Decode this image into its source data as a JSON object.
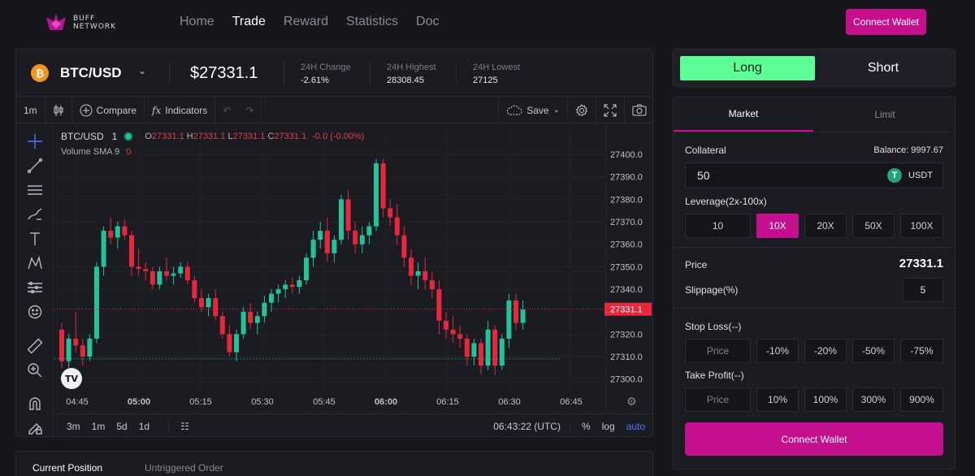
{
  "header": {
    "logo_line1": "BUFF",
    "logo_line2": "NETWORK",
    "nav": [
      "Home",
      "Trade",
      "Reward",
      "Statistics",
      "Doc"
    ],
    "active_nav": "Trade",
    "connect_label": "Connect Wallet"
  },
  "ticker": {
    "pair": "BTC/USD",
    "coin_icon": "bitcoin-icon",
    "price": "$27331.1",
    "stats": [
      {
        "label": "24H Change",
        "value": "-2.61%"
      },
      {
        "label": "24H Highest",
        "value": "28308.45"
      },
      {
        "label": "24H Lowest",
        "value": "27125"
      }
    ]
  },
  "toolbar": {
    "interval": "1m",
    "compare": "Compare",
    "indicators": "Indicators",
    "save": "Save"
  },
  "legend": {
    "symbol": "BTC/USD",
    "interval": "1",
    "o_label": "O",
    "o_val": "27331.1",
    "h_label": "H",
    "h_val": "27331.1",
    "l_label": "L",
    "l_val": "27331.1",
    "c_label": "C",
    "c_val": "27331.1",
    "change": "-0.0 (-0.00%)",
    "volume": "Volume SMA 9",
    "volume_val": "0"
  },
  "chart_data": {
    "type": "candlestick",
    "y_ticks": [
      "27400.0",
      "27390.0",
      "27380.0",
      "27370.0",
      "27360.0",
      "27350.0",
      "27340.0",
      "27330.0",
      "27320.0",
      "27310.0",
      "27300.0"
    ],
    "x_ticks": [
      "04:45",
      "05:00",
      "05:15",
      "05:30",
      "05:45",
      "06:00",
      "06:15",
      "06:30",
      "06:45"
    ],
    "bold_x_ticks": [
      "05:00",
      "06:00"
    ],
    "ylim": [
      27297,
      27404
    ],
    "last_price": "27331.1",
    "up_color": "#22c39a",
    "down_color": "#e8273d",
    "candles": [
      [
        27322,
        27325,
        27305,
        27308
      ],
      [
        27308,
        27320,
        27305,
        27318
      ],
      [
        27318,
        27330,
        27312,
        27315
      ],
      [
        27315,
        27318,
        27306,
        27310
      ],
      [
        27310,
        27320,
        27308,
        27318
      ],
      [
        27318,
        27352,
        27316,
        27350
      ],
      [
        27350,
        27368,
        27346,
        27366
      ],
      [
        27366,
        27372,
        27360,
        27363
      ],
      [
        27363,
        27370,
        27358,
        27368
      ],
      [
        27368,
        27371,
        27362,
        27364
      ],
      [
        27364,
        27366,
        27346,
        27350
      ],
      [
        27350,
        27358,
        27346,
        27349
      ],
      [
        27349,
        27352,
        27344,
        27348
      ],
      [
        27348,
        27350,
        27340,
        27342
      ],
      [
        27342,
        27350,
        27340,
        27348
      ],
      [
        27348,
        27354,
        27344,
        27346
      ],
      [
        27346,
        27350,
        27342,
        27347
      ],
      [
        27347,
        27352,
        27345,
        27350
      ],
      [
        27350,
        27352,
        27342,
        27344
      ],
      [
        27344,
        27346,
        27334,
        27336
      ],
      [
        27336,
        27340,
        27330,
        27332
      ],
      [
        27332,
        27338,
        27328,
        27336
      ],
      [
        27336,
        27340,
        27326,
        27328
      ],
      [
        27328,
        27330,
        27318,
        27320
      ],
      [
        27320,
        27324,
        27310,
        27312
      ],
      [
        27312,
        27322,
        27308,
        27320
      ],
      [
        27320,
        27332,
        27318,
        27330
      ],
      [
        27330,
        27334,
        27322,
        27325
      ],
      [
        27325,
        27330,
        27320,
        27328
      ],
      [
        27328,
        27337,
        27325,
        27334
      ],
      [
        27334,
        27340,
        27330,
        27338
      ],
      [
        27338,
        27342,
        27334,
        27340
      ],
      [
        27340,
        27344,
        27336,
        27342
      ],
      [
        27342,
        27345,
        27338,
        27341
      ],
      [
        27341,
        27346,
        27338,
        27344
      ],
      [
        27344,
        27356,
        27342,
        27354
      ],
      [
        27354,
        27366,
        27350,
        27362
      ],
      [
        27362,
        27370,
        27358,
        27366
      ],
      [
        27366,
        27372,
        27352,
        27356
      ],
      [
        27356,
        27364,
        27352,
        27362
      ],
      [
        27362,
        27382,
        27360,
        27380
      ],
      [
        27380,
        27384,
        27362,
        27366
      ],
      [
        27366,
        27370,
        27356,
        27360
      ],
      [
        27360,
        27368,
        27356,
        27364
      ],
      [
        27364,
        27370,
        27360,
        27368
      ],
      [
        27368,
        27398,
        27366,
        27396
      ],
      [
        27396,
        27398,
        27372,
        27376
      ],
      [
        27376,
        27380,
        27368,
        27372
      ],
      [
        27372,
        27378,
        27360,
        27364
      ],
      [
        27364,
        27368,
        27350,
        27354
      ],
      [
        27354,
        27358,
        27342,
        27346
      ],
      [
        27346,
        27352,
        27340,
        27348
      ],
      [
        27348,
        27354,
        27340,
        27344
      ],
      [
        27344,
        27348,
        27336,
        27340
      ],
      [
        27340,
        27344,
        27320,
        27326
      ],
      [
        27326,
        27330,
        27318,
        27322
      ],
      [
        27322,
        27328,
        27316,
        27320
      ],
      [
        27320,
        27324,
        27314,
        27318
      ],
      [
        27318,
        27320,
        27306,
        27310
      ],
      [
        27310,
        27318,
        27306,
        27316
      ],
      [
        27316,
        27318,
        27302,
        27306
      ],
      [
        27306,
        27326,
        27304,
        27322
      ],
      [
        27322,
        27324,
        27302,
        27306
      ],
      [
        27306,
        27320,
        27304,
        27318
      ],
      [
        27318,
        27338,
        27314,
        27335
      ],
      [
        27335,
        27338,
        27322,
        27325
      ],
      [
        27325,
        27335,
        27322,
        27331
      ]
    ]
  },
  "bottom": {
    "ranges": [
      "3m",
      "1m",
      "5d",
      "1d"
    ],
    "time": "06:43:22 (UTC)",
    "percent": "%",
    "log": "log",
    "auto": "auto"
  },
  "positions": {
    "tabs": [
      "Current Position",
      "Untriggered Order"
    ]
  },
  "trade": {
    "long": "Long",
    "short": "Short",
    "tabs": [
      "Market",
      "Limit"
    ],
    "collateral_label": "Collateral",
    "balance": "Balance: 9997.67",
    "collateral_value": "50",
    "collateral_token": "USDT",
    "token_icon": "tether-icon",
    "leverage_label": "Leverage(2x-100x)",
    "leverage_options": [
      "10",
      "10X",
      "20X",
      "50X",
      "100X"
    ],
    "active_leverage": "10X",
    "price_label": "Price",
    "price_value": "27331.1",
    "slippage_label": "Slippage(%)",
    "slippage_value": "5",
    "stoploss_label": "Stop Loss(--)",
    "stoploss_options": [
      "Price",
      "-10%",
      "-20%",
      "-50%",
      "-75%"
    ],
    "takeprofit_label": "Take Profit(--)",
    "takeprofit_options": [
      "Price",
      "10%",
      "100%",
      "300%",
      "900%"
    ],
    "connect_label": "Connect Wallet",
    "accent": "#c4108e",
    "long_color": "#5cff95"
  }
}
